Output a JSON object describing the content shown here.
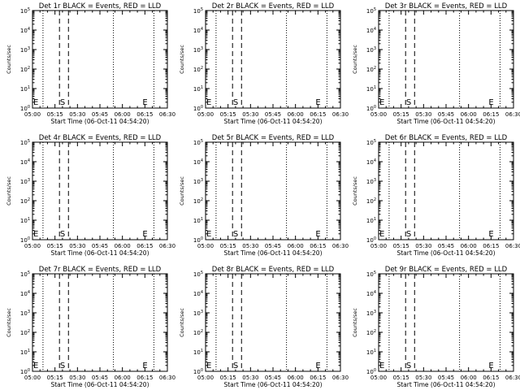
{
  "chart_data": [
    {
      "type": "line",
      "title": "Det 1r BLACK = Events, RED = LLD",
      "xlabel": "Start Time (06-Oct-11 04:54:20)",
      "ylabel": "Counts/sec",
      "x_ticks": [
        "05:00",
        "05:15",
        "05:30",
        "05:45",
        "06:00",
        "06:15",
        "06:30"
      ],
      "xlim": [
        "05:00",
        "06:30"
      ],
      "y_scale": "log",
      "ylim": [
        1,
        100000
      ],
      "y_ticks": [
        "10^0",
        "10^1",
        "10^2",
        "10^3",
        "10^4",
        "10^5"
      ],
      "markers": {
        "dotted_at": [
          "05:07",
          "05:54",
          "06:21"
        ],
        "dashed_at": [
          "05:18",
          "05:24"
        ]
      },
      "annotations": [
        {
          "text": "E",
          "x": "05:00"
        },
        {
          "text": "S",
          "x": "05:20"
        },
        {
          "text": "E",
          "x": "06:15"
        }
      ],
      "series": []
    },
    {
      "type": "line",
      "title": "Det 2r BLACK = Events, RED = LLD",
      "xlabel": "Start Time (06-Oct-11 04:54:20)",
      "ylabel": "Counts/sec",
      "x_ticks": [
        "05:00",
        "05:15",
        "05:30",
        "05:45",
        "06:00",
        "06:15",
        "06:30"
      ],
      "xlim": [
        "05:00",
        "06:30"
      ],
      "y_scale": "log",
      "ylim": [
        1,
        100000
      ],
      "y_ticks": [
        "10^0",
        "10^1",
        "10^2",
        "10^3",
        "10^4",
        "10^5"
      ],
      "markers": {
        "dotted_at": [
          "05:07",
          "05:54",
          "06:21"
        ],
        "dashed_at": [
          "05:18",
          "05:24"
        ]
      },
      "annotations": [
        {
          "text": "E",
          "x": "05:00"
        },
        {
          "text": "S",
          "x": "05:20"
        },
        {
          "text": "E",
          "x": "06:15"
        }
      ],
      "series": []
    },
    {
      "type": "line",
      "title": "Det 3r BLACK = Events, RED = LLD",
      "xlabel": "Start Time (06-Oct-11 04:54:20)",
      "ylabel": "Counts/sec",
      "x_ticks": [
        "05:00",
        "05:15",
        "05:30",
        "05:45",
        "06:00",
        "06:15",
        "06:30"
      ],
      "xlim": [
        "05:00",
        "06:30"
      ],
      "y_scale": "log",
      "ylim": [
        1,
        100000
      ],
      "y_ticks": [
        "10^0",
        "10^1",
        "10^2",
        "10^3",
        "10^4",
        "10^5"
      ],
      "markers": {
        "dotted_at": [
          "05:07",
          "05:54",
          "06:21"
        ],
        "dashed_at": [
          "05:18",
          "05:24"
        ]
      },
      "annotations": [
        {
          "text": "E",
          "x": "05:00"
        },
        {
          "text": "S",
          "x": "05:20"
        },
        {
          "text": "E",
          "x": "06:15"
        }
      ],
      "series": []
    },
    {
      "type": "line",
      "title": "Det 4r BLACK = Events, RED = LLD",
      "xlabel": "Start Time (06-Oct-11 04:54:20)",
      "ylabel": "Counts/sec",
      "x_ticks": [
        "05:00",
        "05:15",
        "05:30",
        "05:45",
        "06:00",
        "06:15",
        "06:30"
      ],
      "xlim": [
        "05:00",
        "06:30"
      ],
      "y_scale": "log",
      "ylim": [
        1,
        100000
      ],
      "y_ticks": [
        "10^0",
        "10^1",
        "10^2",
        "10^3",
        "10^4",
        "10^5"
      ],
      "markers": {
        "dotted_at": [
          "05:07",
          "05:54",
          "06:21"
        ],
        "dashed_at": [
          "05:18",
          "05:24"
        ]
      },
      "annotations": [
        {
          "text": "E",
          "x": "05:00"
        },
        {
          "text": "S",
          "x": "05:20"
        },
        {
          "text": "E",
          "x": "06:15"
        }
      ],
      "series": []
    },
    {
      "type": "line",
      "title": "Det 5r BLACK = Events, RED = LLD",
      "xlabel": "Start Time (06-Oct-11 04:54:20)",
      "ylabel": "Counts/sec",
      "x_ticks": [
        "05:00",
        "05:15",
        "05:30",
        "05:45",
        "06:00",
        "06:15",
        "06:30"
      ],
      "xlim": [
        "05:00",
        "06:30"
      ],
      "y_scale": "log",
      "ylim": [
        1,
        100000
      ],
      "y_ticks": [
        "10^0",
        "10^1",
        "10^2",
        "10^3",
        "10^4",
        "10^5"
      ],
      "markers": {
        "dotted_at": [
          "05:07",
          "05:54",
          "06:21"
        ],
        "dashed_at": [
          "05:18",
          "05:24"
        ]
      },
      "annotations": [
        {
          "text": "E",
          "x": "05:00"
        },
        {
          "text": "S",
          "x": "05:20"
        },
        {
          "text": "E",
          "x": "06:15"
        }
      ],
      "series": []
    },
    {
      "type": "line",
      "title": "Det 6r BLACK = Events, RED = LLD",
      "xlabel": "Start Time (06-Oct-11 04:54:20)",
      "ylabel": "Counts/sec",
      "x_ticks": [
        "05:00",
        "05:15",
        "05:30",
        "05:45",
        "06:00",
        "06:15",
        "06:30"
      ],
      "xlim": [
        "05:00",
        "06:30"
      ],
      "y_scale": "log",
      "ylim": [
        1,
        100000
      ],
      "y_ticks": [
        "10^0",
        "10^1",
        "10^2",
        "10^3",
        "10^4",
        "10^5"
      ],
      "markers": {
        "dotted_at": [
          "05:07",
          "05:54",
          "06:21"
        ],
        "dashed_at": [
          "05:18",
          "05:24"
        ]
      },
      "annotations": [
        {
          "text": "E",
          "x": "05:00"
        },
        {
          "text": "S",
          "x": "05:20"
        },
        {
          "text": "E",
          "x": "06:15"
        }
      ],
      "series": []
    },
    {
      "type": "line",
      "title": "Det 7r BLACK = Events, RED = LLD",
      "xlabel": "Start Time (06-Oct-11 04:54:20)",
      "ylabel": "Counts/sec",
      "x_ticks": [
        "05:00",
        "05:15",
        "05:30",
        "05:45",
        "06:00",
        "06:15",
        "06:30"
      ],
      "xlim": [
        "05:00",
        "06:30"
      ],
      "y_scale": "log",
      "ylim": [
        1,
        100000
      ],
      "y_ticks": [
        "10^0",
        "10^1",
        "10^2",
        "10^3",
        "10^4",
        "10^5"
      ],
      "markers": {
        "dotted_at": [
          "05:07",
          "05:54",
          "06:21"
        ],
        "dashed_at": [
          "05:18",
          "05:24"
        ]
      },
      "annotations": [
        {
          "text": "E",
          "x": "05:00"
        },
        {
          "text": "S",
          "x": "05:20"
        },
        {
          "text": "E",
          "x": "06:15"
        }
      ],
      "series": []
    },
    {
      "type": "line",
      "title": "Det 8r BLACK = Events, RED = LLD",
      "xlabel": "Start Time (06-Oct-11 04:54:20)",
      "ylabel": "Counts/sec",
      "x_ticks": [
        "05:00",
        "05:15",
        "05:30",
        "05:45",
        "06:00",
        "06:15",
        "06:30"
      ],
      "xlim": [
        "05:00",
        "06:30"
      ],
      "y_scale": "log",
      "ylim": [
        1,
        100000
      ],
      "y_ticks": [
        "10^0",
        "10^1",
        "10^2",
        "10^3",
        "10^4",
        "10^5"
      ],
      "markers": {
        "dotted_at": [
          "05:07",
          "05:54",
          "06:21"
        ],
        "dashed_at": [
          "05:18",
          "05:24"
        ]
      },
      "annotations": [
        {
          "text": "E",
          "x": "05:00"
        },
        {
          "text": "S",
          "x": "05:20"
        },
        {
          "text": "E",
          "x": "06:15"
        }
      ],
      "series": []
    },
    {
      "type": "line",
      "title": "Det 9r BLACK = Events, RED = LLD",
      "xlabel": "Start Time (06-Oct-11 04:54:20)",
      "ylabel": "Counts/sec",
      "x_ticks": [
        "05:00",
        "05:15",
        "05:30",
        "05:45",
        "06:00",
        "06:15",
        "06:30"
      ],
      "xlim": [
        "05:00",
        "06:30"
      ],
      "y_scale": "log",
      "ylim": [
        1,
        100000
      ],
      "y_ticks": [
        "10^0",
        "10^1",
        "10^2",
        "10^3",
        "10^4",
        "10^5"
      ],
      "markers": {
        "dotted_at": [
          "05:07",
          "05:54",
          "06:21"
        ],
        "dashed_at": [
          "05:18",
          "05:24"
        ]
      },
      "annotations": [
        {
          "text": "E",
          "x": "05:00"
        },
        {
          "text": "S",
          "x": "05:20"
        },
        {
          "text": "E",
          "x": "06:15"
        }
      ],
      "series": []
    }
  ],
  "colors": {
    "axes": "#000000",
    "background": "#ffffff",
    "events": "#000000",
    "lld": "#ff0000"
  }
}
